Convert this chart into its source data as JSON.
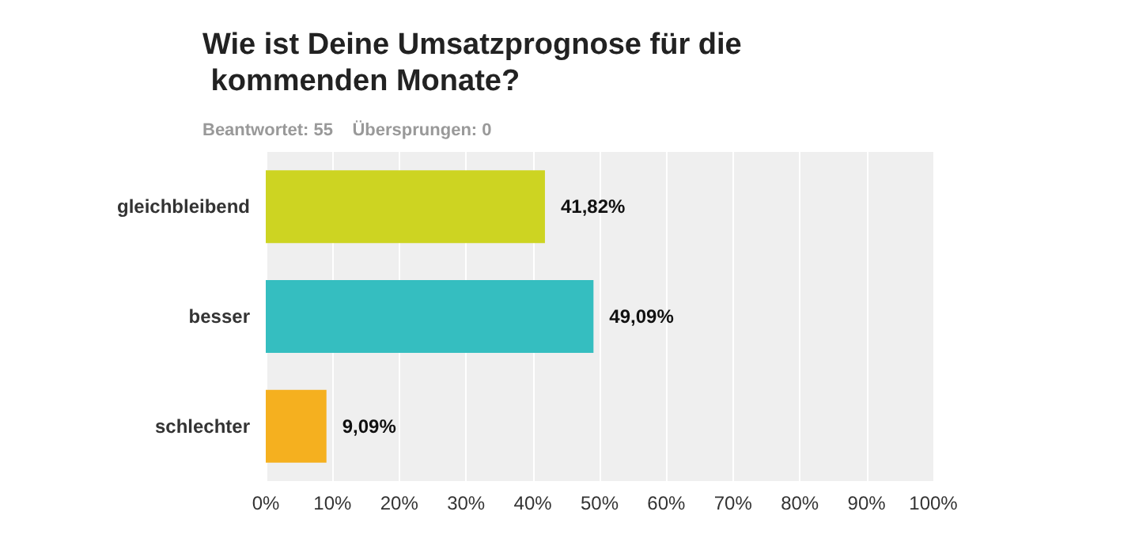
{
  "chart_data": {
    "type": "bar",
    "orientation": "horizontal",
    "title": "Wie ist Deine Umsatzprognose für die kommenden Monate?",
    "subtitle": "Beantwortet: 55    Übersprungen: 0",
    "categories": [
      "gleichbleibend",
      "besser",
      "schlechter"
    ],
    "values": [
      41.82,
      49.09,
      9.09
    ],
    "colors": [
      "#cdd422",
      "#35bec0",
      "#f5b01f"
    ],
    "value_labels": [
      "41,82%",
      "49,09%",
      "9,09%"
    ],
    "xlim": [
      0,
      100
    ],
    "xticks": [
      {
        "value": 0,
        "label": "0%"
      },
      {
        "value": 10,
        "label": "10%"
      },
      {
        "value": 20,
        "label": "20%"
      },
      {
        "value": 30,
        "label": "30%"
      },
      {
        "value": 40,
        "label": "40%"
      },
      {
        "value": 50,
        "label": "50%"
      },
      {
        "value": 60,
        "label": "60%"
      },
      {
        "value": 70,
        "label": "70%"
      },
      {
        "value": 80,
        "label": "80%"
      },
      {
        "value": 90,
        "label": "90%"
      },
      {
        "value": 100,
        "label": "100%"
      }
    ],
    "grid": "x"
  }
}
